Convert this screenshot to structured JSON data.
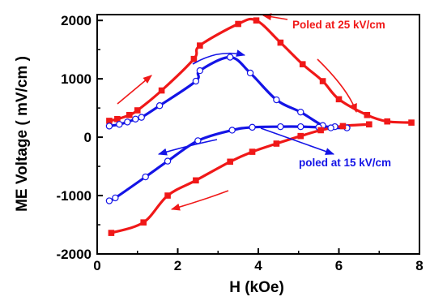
{
  "chart_data": {
    "type": "scatter",
    "xlabel": "H (kOe)",
    "ylabel": "ME Voltage ( mV/cm )",
    "xlim": [
      0,
      8
    ],
    "ylim": [
      -2000,
      2100
    ],
    "xticks": [
      0,
      2,
      4,
      6,
      8
    ],
    "yticks": [
      -2000,
      -1000,
      0,
      1000,
      2000
    ],
    "grid": false,
    "legend": "none",
    "colors": {
      "red": "#f01818",
      "blue": "#1414e6"
    },
    "series": [
      {
        "color": "red",
        "marker": "filled-square",
        "x": [
          0.3,
          0.5,
          0.8,
          1.0,
          1.6,
          2.4,
          2.55,
          3.5,
          3.95,
          4.55,
          5.1,
          5.6,
          6.0,
          6.7,
          7.2,
          7.8
        ],
        "y": [
          280,
          310,
          380,
          460,
          800,
          1340,
          1570,
          1940,
          2000,
          1620,
          1250,
          960,
          650,
          380,
          270,
          250
        ]
      },
      {
        "color": "blue",
        "marker": "open-circle",
        "x": [
          0.3,
          0.55,
          0.75,
          0.95,
          1.1,
          1.55,
          2.45,
          2.55,
          3.3,
          3.8,
          4.45,
          5.05,
          5.6,
          5.9,
          6.2
        ],
        "y": [
          190,
          220,
          260,
          310,
          340,
          540,
          960,
          1140,
          1370,
          1100,
          640,
          430,
          200,
          180,
          160
        ]
      },
      {
        "color": "blue",
        "marker": "open-circle",
        "x": [
          0.3,
          0.45,
          1.2,
          1.75,
          2.5,
          3.35,
          3.85,
          4.55,
          5.05,
          5.5,
          5.8,
          6.2
        ],
        "y": [
          -1090,
          -1040,
          -680,
          -410,
          -60,
          120,
          170,
          180,
          180,
          170,
          160,
          160
        ]
      },
      {
        "color": "red",
        "marker": "filled-square",
        "x": [
          0.35,
          1.15,
          1.75,
          2.45,
          3.3,
          3.85,
          4.45,
          5.05,
          5.55,
          6.1,
          6.75
        ],
        "y": [
          -1640,
          -1460,
          -1000,
          -740,
          -420,
          -250,
          -110,
          20,
          120,
          190,
          220
        ]
      }
    ],
    "annotations": [
      {
        "text": "Poled at 25 kV/cm",
        "color": "red",
        "x": 4.9,
        "y": 1890
      },
      {
        "text": "poled at 15 kV/cm",
        "color": "blue",
        "x": 4.9,
        "y": -480
      }
    ]
  }
}
